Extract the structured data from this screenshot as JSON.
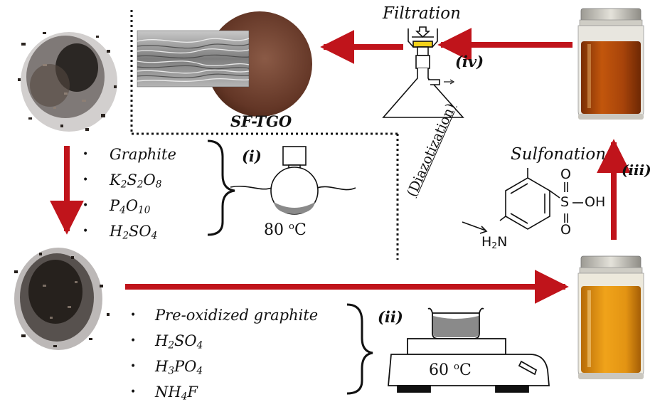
{
  "labels": {
    "filtration": "Filtration",
    "sf_tgo": "SF-TGO",
    "sulfonation": "Sulfonation",
    "diazotization": "(Diazotization)",
    "step_i": "(i)",
    "step_ii": "(ii)",
    "step_iii": "(iii)",
    "step_iv": "(iv)",
    "temp_i_value": "80",
    "temp_i_unit": "C",
    "temp_ii_value": "60",
    "temp_ii_unit": "C",
    "temp_degree_mark": "o"
  },
  "step_i_reagents": [
    {
      "name": "graphite",
      "parts": [
        {
          "t": "Graphite"
        }
      ]
    },
    {
      "name": "k2s2o8",
      "parts": [
        {
          "t": "K"
        },
        {
          "t": "2",
          "sub": true
        },
        {
          "t": "S"
        },
        {
          "t": "2",
          "sub": true
        },
        {
          "t": "O"
        },
        {
          "t": "8",
          "sub": true
        }
      ]
    },
    {
      "name": "p4o10",
      "parts": [
        {
          "t": "P"
        },
        {
          "t": "4",
          "sub": true
        },
        {
          "t": "O"
        },
        {
          "t": "10",
          "sub": true
        }
      ]
    },
    {
      "name": "h2so4",
      "parts": [
        {
          "t": "H"
        },
        {
          "t": "2",
          "sub": true
        },
        {
          "t": "SO"
        },
        {
          "t": "4",
          "sub": true
        }
      ]
    }
  ],
  "step_ii_reagents": [
    {
      "name": "pre-oxidized-graphite",
      "parts": [
        {
          "t": "Pre-oxidized graphite"
        }
      ]
    },
    {
      "name": "h2so4",
      "parts": [
        {
          "t": "H"
        },
        {
          "t": "2",
          "sub": true
        },
        {
          "t": "SO"
        },
        {
          "t": "4",
          "sub": true
        }
      ]
    },
    {
      "name": "h3po4",
      "parts": [
        {
          "t": "H"
        },
        {
          "t": "3",
          "sub": true
        },
        {
          "t": "PO"
        },
        {
          "t": "4",
          "sub": true
        }
      ]
    },
    {
      "name": "nh4f",
      "parts": [
        {
          "t": "NH"
        },
        {
          "t": "4",
          "sub": true
        },
        {
          "t": "F"
        }
      ]
    }
  ],
  "molecule": {
    "amine_group": "H2N",
    "sulfonic_s": "S",
    "sulfonic_oh": "OH",
    "oxygen_top": "O",
    "oxygen_bottom": "O"
  },
  "colors": {
    "arrow_red": "#c0141b",
    "graphite_dark": "#3a3330",
    "membrane_brown": "#6b3d2c",
    "solution_dark": "#b34a0a",
    "solution_light": "#d98a10",
    "funnel_yellow": "#f2d21a"
  }
}
